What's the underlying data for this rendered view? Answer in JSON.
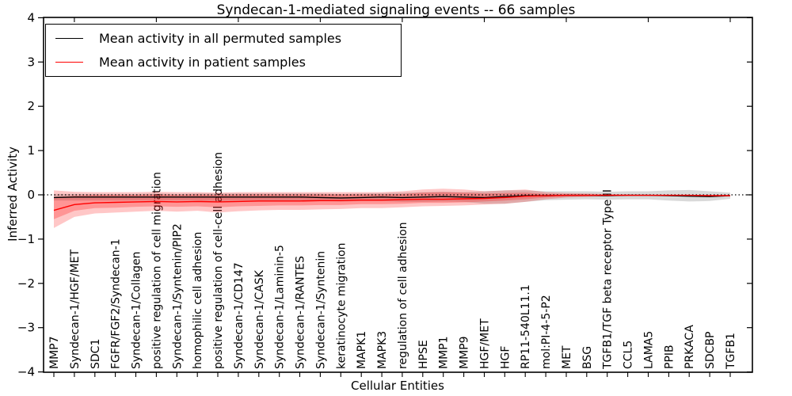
{
  "chart_data": {
    "type": "line",
    "title": "Syndecan-1-mediated signaling events -- 66 samples",
    "xlabel": "Cellular Entities",
    "ylabel": "Inferred Activity",
    "ylim": [
      -4,
      4
    ],
    "yticks": [
      -4,
      -3,
      -2,
      -1,
      0,
      1,
      2,
      3,
      4
    ],
    "grid": false,
    "legend_position": "upper left",
    "zero_reference_line": {
      "y": 0,
      "style": "dotted",
      "color": "#000000"
    },
    "categories": [
      "MMP7",
      "Syndecan-1/HGF/MET",
      "SDC1",
      "FGFR/FGF2/Syndecan-1",
      "Syndecan-1/Collagen",
      "positive regulation of cell migration",
      "Syndecan-1/Syntenin/PIP2",
      "homophilic cell adhesion",
      "positive regulation of cell-cell adhesion",
      "Syndecan-1/CD147",
      "Syndecan-1/CASK",
      "Syndecan-1/Laminin-5",
      "Syndecan-1/RANTES",
      "Syndecan-1/Syntenin",
      "keratinocyte migration",
      "MAPK1",
      "MAPK3",
      "regulation of cell adhesion",
      "HPSE",
      "MMP1",
      "MMP9",
      "HGF/MET",
      "HGF",
      "RP11-540L11.1",
      "mol:PI-4-5-P2",
      "MET",
      "BSG",
      "TGFB1/TGF beta receptor Type II",
      "CCL5",
      "LAMA5",
      "PPIB",
      "PRKACA",
      "SDCBP",
      "TGFB1"
    ],
    "series": [
      {
        "name": "Mean activity in all permuted samples",
        "color": "#000000",
        "values": [
          -0.06,
          -0.05,
          -0.05,
          -0.05,
          -0.05,
          -0.05,
          -0.05,
          -0.05,
          -0.05,
          -0.05,
          -0.05,
          -0.05,
          -0.05,
          -0.06,
          -0.07,
          -0.06,
          -0.05,
          -0.06,
          -0.05,
          -0.04,
          -0.05,
          -0.06,
          -0.04,
          -0.02,
          -0.02,
          -0.01,
          -0.01,
          -0.02,
          -0.01,
          -0.01,
          -0.02,
          -0.03,
          -0.04,
          -0.02
        ]
      },
      {
        "name": "Mean activity in patient samples",
        "color": "#ff0000",
        "values": [
          -0.35,
          -0.22,
          -0.18,
          -0.17,
          -0.16,
          -0.15,
          -0.16,
          -0.15,
          -0.16,
          -0.15,
          -0.14,
          -0.14,
          -0.14,
          -0.13,
          -0.13,
          -0.12,
          -0.12,
          -0.11,
          -0.1,
          -0.1,
          -0.09,
          -0.08,
          -0.06,
          -0.03,
          -0.02,
          -0.01,
          -0.01,
          -0.01,
          -0.01,
          -0.01,
          -0.01,
          -0.01,
          -0.02,
          -0.02
        ]
      }
    ],
    "bands": [
      {
        "name": "permuted-samples-band",
        "color": "#808080",
        "opacity": 0.3,
        "low": [
          -0.13,
          -0.13,
          -0.13,
          -0.13,
          -0.13,
          -0.13,
          -0.13,
          -0.13,
          -0.14,
          -0.13,
          -0.13,
          -0.13,
          -0.13,
          -0.14,
          -0.15,
          -0.14,
          -0.14,
          -0.16,
          -0.16,
          -0.15,
          -0.16,
          -0.2,
          -0.2,
          -0.16,
          -0.12,
          -0.11,
          -0.1,
          -0.11,
          -0.1,
          -0.1,
          -0.13,
          -0.15,
          -0.14,
          -0.09
        ],
        "high": [
          0.02,
          0.02,
          0.02,
          0.02,
          0.02,
          0.03,
          0.02,
          0.03,
          0.03,
          0.03,
          0.03,
          0.03,
          0.03,
          0.03,
          0.02,
          0.03,
          0.04,
          0.05,
          0.06,
          0.07,
          0.06,
          0.08,
          0.1,
          0.1,
          0.08,
          0.08,
          0.08,
          0.07,
          0.08,
          0.08,
          0.1,
          0.11,
          0.08,
          0.05
        ]
      },
      {
        "name": "patient-samples-band-outer",
        "color": "#ff0000",
        "opacity": 0.22,
        "low": [
          -0.75,
          -0.5,
          -0.42,
          -0.4,
          -0.38,
          -0.36,
          -0.38,
          -0.36,
          -0.4,
          -0.37,
          -0.35,
          -0.34,
          -0.34,
          -0.33,
          -0.32,
          -0.3,
          -0.3,
          -0.28,
          -0.26,
          -0.25,
          -0.24,
          -0.22,
          -0.2,
          -0.16,
          -0.1,
          -0.06,
          -0.05,
          -0.03,
          -0.02,
          -0.01,
          -0.01,
          -0.01,
          -0.02,
          -0.02
        ],
        "high": [
          0.1,
          0.07,
          0.06,
          0.06,
          0.06,
          0.07,
          0.06,
          0.06,
          0.05,
          0.06,
          0.06,
          0.06,
          0.06,
          0.06,
          0.06,
          0.06,
          0.06,
          0.08,
          0.12,
          0.14,
          0.12,
          0.08,
          0.1,
          0.12,
          0.06,
          0.04,
          0.03,
          0.02,
          0.01,
          0.0,
          0.0,
          0.0,
          0.0,
          0.0
        ]
      },
      {
        "name": "patient-samples-band-inner",
        "color": "#ff0000",
        "opacity": 0.25,
        "low": [
          -0.55,
          -0.36,
          -0.3,
          -0.29,
          -0.27,
          -0.26,
          -0.27,
          -0.26,
          -0.28,
          -0.26,
          -0.25,
          -0.24,
          -0.24,
          -0.23,
          -0.23,
          -0.21,
          -0.21,
          -0.2,
          -0.18,
          -0.18,
          -0.17,
          -0.15,
          -0.13,
          -0.1,
          -0.06,
          -0.04,
          -0.03,
          -0.02,
          -0.01,
          -0.01,
          -0.01,
          -0.01,
          -0.02,
          -0.02
        ],
        "high": [
          -0.05,
          -0.02,
          0.0,
          0.0,
          0.0,
          0.01,
          0.0,
          0.01,
          0.0,
          0.01,
          0.01,
          0.01,
          0.01,
          0.01,
          0.01,
          0.01,
          0.01,
          0.02,
          0.05,
          0.06,
          0.05,
          0.03,
          0.04,
          0.05,
          0.02,
          0.01,
          0.01,
          0.0,
          0.0,
          0.0,
          0.0,
          0.0,
          0.0,
          0.0
        ]
      }
    ]
  }
}
